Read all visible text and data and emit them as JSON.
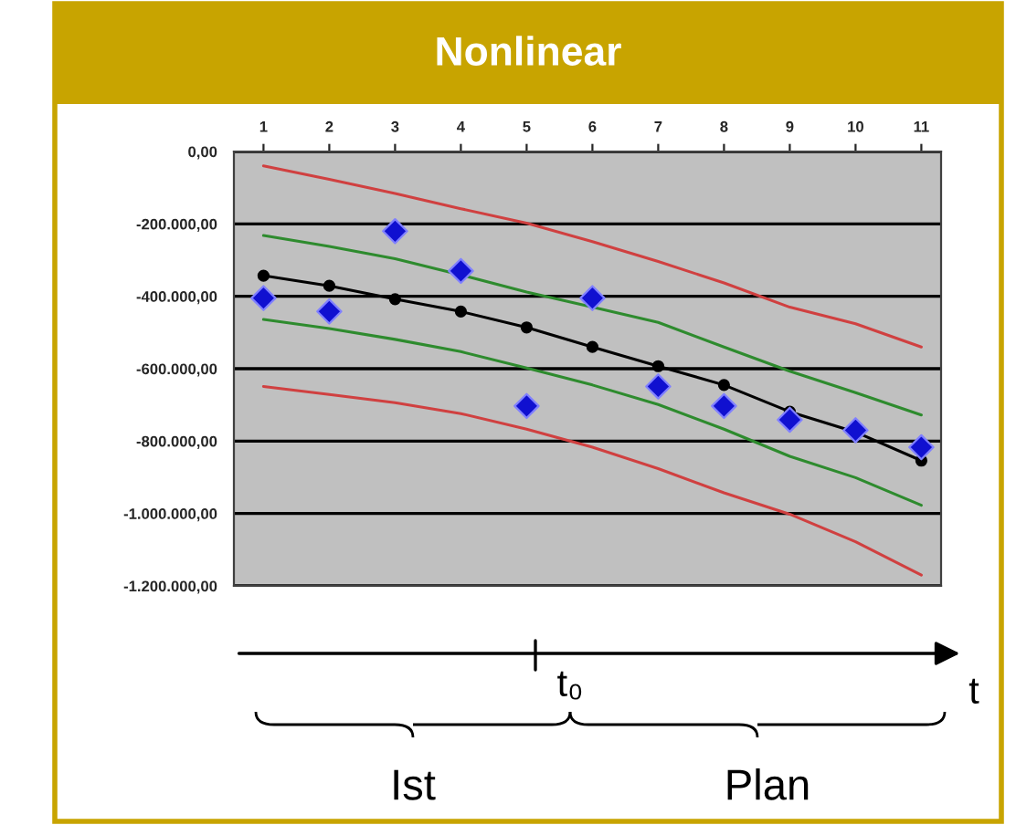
{
  "chart_data": {
    "type": "line",
    "title": "Nonlinear",
    "categories": [
      "1",
      "2",
      "3",
      "4",
      "5",
      "6",
      "7",
      "8",
      "9",
      "10",
      "11"
    ],
    "series": [
      {
        "color": "#d04040",
        "marker": "none",
        "values": [
          -40000,
          -77000,
          -116000,
          -158000,
          -198000,
          -249000,
          -304000,
          -363000,
          -430000,
          -476000,
          -540000
        ]
      },
      {
        "color": "#2e8b2e",
        "marker": "none",
        "values": [
          -232000,
          -262000,
          -296000,
          -341000,
          -388000,
          -430000,
          -472000,
          -540000,
          -607000,
          -666000,
          -728000
        ]
      },
      {
        "color": "#000000",
        "marker": "circle",
        "values": [
          -343000,
          -371000,
          -408000,
          -442000,
          -486000,
          -540000,
          -593000,
          -645000,
          -719000,
          -775000,
          -854000
        ]
      },
      {
        "color": "#2e8b2e",
        "marker": "none",
        "values": [
          -464000,
          -489000,
          -519000,
          -553000,
          -598000,
          -645000,
          -699000,
          -767000,
          -842000,
          -901000,
          -977000
        ]
      },
      {
        "color": "#d04040",
        "marker": "none",
        "values": [
          -649000,
          -671000,
          -694000,
          -724000,
          -767000,
          -817000,
          -876000,
          -943000,
          -1002000,
          -1078000,
          -1170000
        ]
      },
      {
        "type": "scatter",
        "color": "#1010d0",
        "marker": "diamond",
        "values": [
          -405000,
          -442000,
          -220000,
          -330000,
          -703000,
          -405000,
          -649000,
          -703000,
          -741000,
          -770000,
          -817000
        ]
      }
    ],
    "ylim": [
      -1200000,
      0
    ],
    "yticks": [
      {
        "value": 0,
        "label": "0,00"
      },
      {
        "value": -200000,
        "label": "-200.000,00"
      },
      {
        "value": -400000,
        "label": "-400.000,00"
      },
      {
        "value": -600000,
        "label": "-600.000,00"
      },
      {
        "value": -800000,
        "label": "-800.000,00"
      },
      {
        "value": -1000000,
        "label": "-1.000.000,00"
      },
      {
        "value": -1200000,
        "label": "-1.200.000,00"
      }
    ],
    "grid": "y",
    "annotations": [
      "t₀",
      "t",
      "Ist",
      "Plan"
    ]
  }
}
